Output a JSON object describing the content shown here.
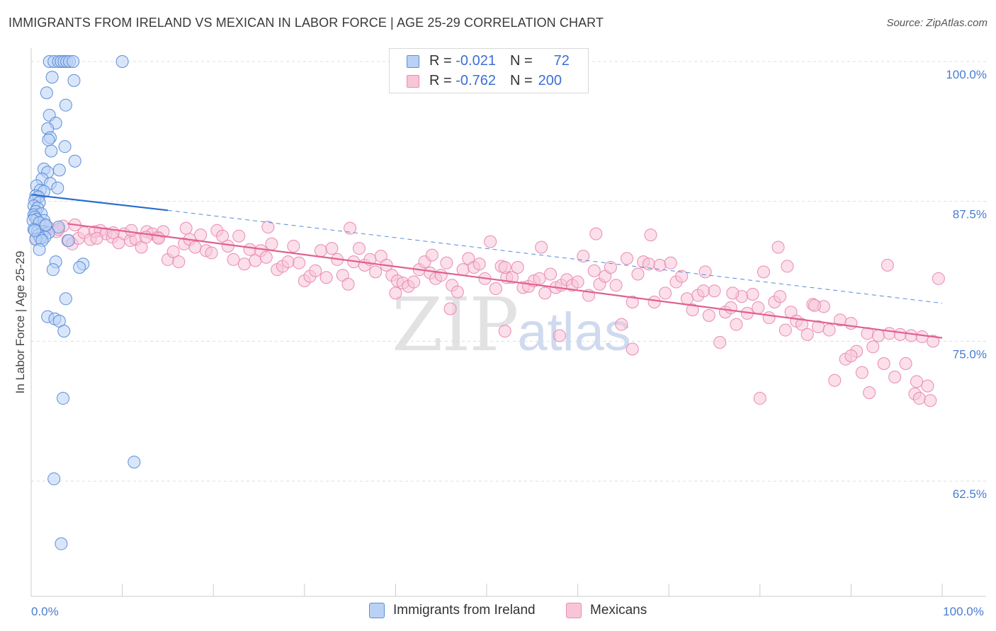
{
  "title": "IMMIGRANTS FROM IRELAND VS MEXICAN IN LABOR FORCE | AGE 25-29 CORRELATION CHART",
  "source": "Source: ZipAtlas.com",
  "watermark": {
    "zip": "ZIP",
    "atlas": "atlas"
  },
  "legend": {
    "row1": {
      "r_label": "R =",
      "r_value": "-0.021",
      "n_label": "N =",
      "n_value": "72"
    },
    "row2": {
      "r_label": "R =",
      "r_value": "-0.762",
      "n_label": "N =",
      "n_value": "200"
    }
  },
  "colors": {
    "blue_fill": "#b9d1f5",
    "blue_stroke": "#5b8fd9",
    "blue_line": "#2a6dd2",
    "pink_fill": "#f8c5d8",
    "pink_stroke": "#e98bb0",
    "pink_line": "#e0608f",
    "tick_color": "#4a7cd0",
    "grid": "#dddddd"
  },
  "chart_data": {
    "type": "scatter",
    "title": "IMMIGRANTS FROM IRELAND VS MEXICAN IN LABOR FORCE | AGE 25-29 CORRELATION CHART",
    "xlabel": "",
    "ylabel": "In Labor Force | Age 25-29",
    "xlim": [
      0,
      100
    ],
    "ylim": [
      52.2,
      101.2
    ],
    "x_tick_labels": [
      {
        "value": 0,
        "label": "0.0%"
      },
      {
        "value": 100,
        "label": "100.0%"
      }
    ],
    "y_ticks": [
      {
        "value": 100,
        "label": "100.0%"
      },
      {
        "value": 87.5,
        "label": "87.5%"
      },
      {
        "value": 75,
        "label": "75.0%"
      },
      {
        "value": 62.5,
        "label": "62.5%"
      }
    ],
    "series": [
      {
        "name": "Immigrants from Ireland",
        "r": -0.021,
        "n": 72,
        "trend": {
          "x0": 0,
          "y0": 88.1,
          "x1": 15,
          "y1": 86.7,
          "dash_x1": 100,
          "dash_y1": 78.4
        },
        "points": [
          [
            2.0,
            100
          ],
          [
            2.5,
            100
          ],
          [
            3.0,
            100
          ],
          [
            3.3,
            100
          ],
          [
            3.6,
            100
          ],
          [
            3.9,
            100
          ],
          [
            4.2,
            100
          ],
          [
            4.6,
            100
          ],
          [
            10.0,
            100
          ],
          [
            2.3,
            98.6
          ],
          [
            4.7,
            98.3
          ],
          [
            1.7,
            97.2
          ],
          [
            3.8,
            96.1
          ],
          [
            2.0,
            95.2
          ],
          [
            2.7,
            94.5
          ],
          [
            1.8,
            94.0
          ],
          [
            2.1,
            93.2
          ],
          [
            1.9,
            93.0
          ],
          [
            3.7,
            92.4
          ],
          [
            2.2,
            92.0
          ],
          [
            4.8,
            91.1
          ],
          [
            1.4,
            90.4
          ],
          [
            3.1,
            90.3
          ],
          [
            1.8,
            90.1
          ],
          [
            1.2,
            89.5
          ],
          [
            2.1,
            89.1
          ],
          [
            0.6,
            88.9
          ],
          [
            1.0,
            88.5
          ],
          [
            1.4,
            88.4
          ],
          [
            2.9,
            88.7
          ],
          [
            0.5,
            88.0
          ],
          [
            0.8,
            87.9
          ],
          [
            0.4,
            87.6
          ],
          [
            0.9,
            87.4
          ],
          [
            0.3,
            87.1
          ],
          [
            0.7,
            86.9
          ],
          [
            0.5,
            86.6
          ],
          [
            0.3,
            86.3
          ],
          [
            1.1,
            86.4
          ],
          [
            0.4,
            86.1
          ],
          [
            0.6,
            85.9
          ],
          [
            0.2,
            85.8
          ],
          [
            1.4,
            85.8
          ],
          [
            0.9,
            85.6
          ],
          [
            1.6,
            85.3
          ],
          [
            3.0,
            85.2
          ],
          [
            0.3,
            85.0
          ],
          [
            0.7,
            84.8
          ],
          [
            1.3,
            84.8
          ],
          [
            1.9,
            84.7
          ],
          [
            0.8,
            84.5
          ],
          [
            1.5,
            84.3
          ],
          [
            1.0,
            84.2
          ],
          [
            0.5,
            84.1
          ],
          [
            1.2,
            84.0
          ],
          [
            4.1,
            84.0
          ],
          [
            0.9,
            83.2
          ],
          [
            2.7,
            82.1
          ],
          [
            5.7,
            81.9
          ],
          [
            2.4,
            81.4
          ],
          [
            5.3,
            81.6
          ],
          [
            3.8,
            78.8
          ],
          [
            1.8,
            77.2
          ],
          [
            2.6,
            77.0
          ],
          [
            3.1,
            76.8
          ],
          [
            3.6,
            75.9
          ],
          [
            3.5,
            69.9
          ],
          [
            11.3,
            64.2
          ],
          [
            2.5,
            62.7
          ],
          [
            3.3,
            56.9
          ],
          [
            0.4,
            84.9
          ],
          [
            1.6,
            85.4
          ]
        ]
      },
      {
        "name": "Mexicans",
        "r": -0.762,
        "n": 200,
        "trend": {
          "x0": 4,
          "y0": 85.5,
          "x1": 100,
          "y1": 75.3
        },
        "points": [
          [
            0.5,
            84.2
          ],
          [
            1.2,
            84.5
          ],
          [
            2.0,
            85.1
          ],
          [
            2.8,
            84.8
          ],
          [
            3.5,
            85.3
          ],
          [
            4.0,
            84.0
          ],
          [
            4.5,
            83.7
          ],
          [
            5.2,
            84.2
          ],
          [
            5.8,
            84.7
          ],
          [
            6.5,
            84.1
          ],
          [
            7.0,
            84.8
          ],
          [
            7.6,
            84.9
          ],
          [
            8.2,
            84.6
          ],
          [
            8.9,
            84.3
          ],
          [
            9.6,
            83.8
          ],
          [
            10.2,
            84.6
          ],
          [
            10.9,
            84.0
          ],
          [
            11.5,
            84.1
          ],
          [
            12.1,
            83.4
          ],
          [
            12.7,
            84.8
          ],
          [
            13.3,
            84.6
          ],
          [
            13.9,
            84.3
          ],
          [
            14.5,
            84.8
          ],
          [
            3.0,
            85.0
          ],
          [
            4.8,
            85.4
          ],
          [
            7.2,
            84.2
          ],
          [
            9.0,
            84.7
          ],
          [
            11.0,
            84.9
          ],
          [
            12.6,
            84.3
          ],
          [
            14.0,
            84.2
          ],
          [
            15.0,
            82.3
          ],
          [
            15.6,
            83.0
          ],
          [
            16.2,
            82.1
          ],
          [
            16.8,
            83.7
          ],
          [
            17.4,
            84.1
          ],
          [
            18.0,
            83.4
          ],
          [
            18.6,
            84.5
          ],
          [
            19.2,
            83.1
          ],
          [
            19.8,
            82.9
          ],
          [
            20.4,
            84.9
          ],
          [
            21.0,
            84.4
          ],
          [
            21.6,
            83.5
          ],
          [
            22.2,
            82.3
          ],
          [
            22.8,
            84.4
          ],
          [
            23.4,
            81.9
          ],
          [
            24.0,
            83.2
          ],
          [
            24.6,
            82.2
          ],
          [
            25.2,
            83.1
          ],
          [
            25.8,
            82.5
          ],
          [
            26.4,
            83.7
          ],
          [
            27.0,
            81.4
          ],
          [
            27.6,
            81.7
          ],
          [
            28.2,
            82.1
          ],
          [
            28.8,
            83.5
          ],
          [
            29.4,
            82.0
          ],
          [
            30.0,
            80.4
          ],
          [
            30.6,
            80.8
          ],
          [
            31.2,
            81.3
          ],
          [
            31.8,
            83.1
          ],
          [
            32.4,
            80.7
          ],
          [
            33.0,
            83.3
          ],
          [
            33.6,
            82.3
          ],
          [
            34.2,
            80.9
          ],
          [
            34.8,
            80.1
          ],
          [
            35.4,
            82.1
          ],
          [
            36.0,
            83.3
          ],
          [
            36.6,
            81.8
          ],
          [
            37.2,
            82.3
          ],
          [
            37.8,
            81.2
          ],
          [
            38.4,
            82.6
          ],
          [
            39.0,
            81.8
          ],
          [
            39.6,
            80.9
          ],
          [
            40.2,
            80.4
          ],
          [
            40.8,
            80.2
          ],
          [
            41.4,
            79.9
          ],
          [
            42.0,
            80.3
          ],
          [
            42.6,
            81.4
          ],
          [
            43.2,
            82.1
          ],
          [
            43.8,
            81.1
          ],
          [
            44.4,
            80.6
          ],
          [
            45.0,
            80.9
          ],
          [
            45.6,
            82.0
          ],
          [
            46.2,
            80.0
          ],
          [
            46.8,
            79.4
          ],
          [
            47.4,
            81.4
          ],
          [
            48.0,
            82.4
          ],
          [
            48.6,
            81.6
          ],
          [
            49.2,
            81.9
          ],
          [
            49.8,
            80.6
          ],
          [
            50.4,
            83.9
          ],
          [
            51.0,
            79.7
          ],
          [
            51.6,
            81.7
          ],
          [
            52.2,
            80.7
          ],
          [
            52.8,
            80.7
          ],
          [
            53.4,
            81.6
          ],
          [
            54.0,
            79.8
          ],
          [
            54.6,
            79.9
          ],
          [
            55.2,
            80.4
          ],
          [
            55.8,
            80.6
          ],
          [
            56.4,
            79.3
          ],
          [
            57.0,
            81.0
          ],
          [
            57.6,
            79.8
          ],
          [
            58.2,
            80.0
          ],
          [
            58.8,
            80.5
          ],
          [
            59.4,
            80.0
          ],
          [
            60.0,
            80.3
          ],
          [
            60.6,
            82.6
          ],
          [
            61.2,
            79.1
          ],
          [
            61.8,
            81.3
          ],
          [
            62.4,
            80.1
          ],
          [
            63.0,
            80.8
          ],
          [
            63.6,
            81.6
          ],
          [
            64.2,
            80.0
          ],
          [
            64.8,
            76.5
          ],
          [
            65.4,
            82.4
          ],
          [
            66.0,
            78.5
          ],
          [
            66.6,
            81.0
          ],
          [
            67.2,
            82.1
          ],
          [
            67.8,
            81.9
          ],
          [
            68.4,
            78.5
          ],
          [
            69.0,
            81.8
          ],
          [
            69.6,
            79.3
          ],
          [
            70.2,
            82.0
          ],
          [
            70.8,
            80.3
          ],
          [
            71.4,
            80.8
          ],
          [
            72.0,
            78.8
          ],
          [
            72.6,
            77.8
          ],
          [
            73.2,
            79.1
          ],
          [
            73.8,
            79.5
          ],
          [
            74.4,
            77.3
          ],
          [
            75.0,
            79.5
          ],
          [
            75.6,
            74.9
          ],
          [
            76.2,
            77.6
          ],
          [
            76.8,
            78.0
          ],
          [
            77.4,
            76.5
          ],
          [
            78.0,
            79.0
          ],
          [
            78.6,
            77.5
          ],
          [
            79.2,
            79.2
          ],
          [
            79.8,
            78.0
          ],
          [
            80.4,
            81.2
          ],
          [
            81.0,
            77.1
          ],
          [
            81.6,
            78.5
          ],
          [
            82.2,
            79.0
          ],
          [
            82.8,
            76.0
          ],
          [
            83.4,
            77.6
          ],
          [
            84.0,
            76.8
          ],
          [
            84.6,
            76.5
          ],
          [
            85.2,
            75.6
          ],
          [
            85.8,
            78.3
          ],
          [
            86.4,
            76.3
          ],
          [
            87.0,
            78.1
          ],
          [
            87.6,
            76.0
          ],
          [
            88.2,
            71.5
          ],
          [
            88.8,
            76.9
          ],
          [
            89.4,
            73.4
          ],
          [
            90.0,
            76.6
          ],
          [
            90.6,
            74.1
          ],
          [
            91.2,
            72.2
          ],
          [
            91.8,
            75.7
          ],
          [
            92.4,
            74.5
          ],
          [
            93.0,
            75.5
          ],
          [
            93.6,
            73.0
          ],
          [
            94.2,
            75.7
          ],
          [
            94.8,
            71.8
          ],
          [
            95.4,
            75.6
          ],
          [
            96.0,
            73.0
          ],
          [
            96.6,
            75.5
          ],
          [
            97.2,
            71.4
          ],
          [
            97.8,
            75.4
          ],
          [
            98.4,
            71.0
          ],
          [
            99.0,
            75.0
          ],
          [
            99.6,
            80.6
          ],
          [
            17.0,
            85.1
          ],
          [
            26.0,
            85.2
          ],
          [
            35.0,
            85.1
          ],
          [
            44.0,
            82.7
          ],
          [
            52.0,
            81.6
          ],
          [
            56.0,
            83.4
          ],
          [
            62.0,
            84.6
          ],
          [
            68.0,
            84.5
          ],
          [
            74.0,
            81.2
          ],
          [
            77.0,
            79.3
          ],
          [
            82.0,
            83.4
          ],
          [
            86.0,
            78.2
          ],
          [
            94.0,
            81.8
          ],
          [
            97.0,
            70.3
          ],
          [
            92.0,
            70.4
          ],
          [
            80.0,
            69.9
          ],
          [
            66.0,
            74.3
          ],
          [
            58.0,
            75.5
          ],
          [
            52.0,
            75.9
          ],
          [
            46.0,
            77.9
          ],
          [
            40.0,
            79.3
          ],
          [
            83.0,
            81.7
          ],
          [
            97.5,
            69.9
          ],
          [
            98.7,
            69.7
          ],
          [
            90.0,
            73.7
          ]
        ]
      }
    ]
  },
  "bottom_legend": [
    {
      "label": "Immigrants from Ireland"
    },
    {
      "label": "Mexicans"
    }
  ]
}
